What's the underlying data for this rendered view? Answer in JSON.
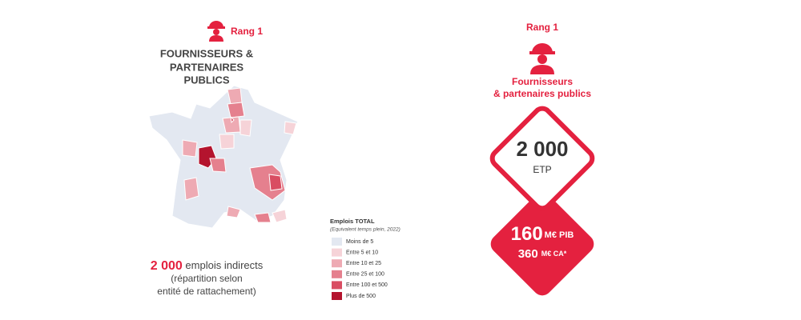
{
  "left": {
    "rank": "Rang 1",
    "title_lines": [
      "FOURNISSEURS &",
      "PARTENAIRES",
      "PUBLICS"
    ],
    "caption": {
      "highlight": "2 000",
      "rest": "emplois indirects",
      "lines": [
        "(répartition selon",
        "entité de rattachement)"
      ]
    }
  },
  "legend": {
    "title": "Emplois TOTAL",
    "subtitle": "(Equivalent temps plein, 2022)",
    "items": [
      {
        "label": "Moins de 5",
        "color": "#e3e8f1"
      },
      {
        "label": "Entre 5 et 10",
        "color": "#f6d3d8"
      },
      {
        "label": "Entre 10 et 25",
        "color": "#eeaab3"
      },
      {
        "label": "Entre 25 et 100",
        "color": "#e5808e"
      },
      {
        "label": "Entre 100 et 500",
        "color": "#d94d62"
      },
      {
        "label": "Plus de 500",
        "color": "#b4142e"
      }
    ]
  },
  "right": {
    "rank": "Rang 1",
    "title_lines": [
      "Fournisseurs",
      "& partenaires publics"
    ],
    "diamond_top": {
      "value": "2 000",
      "unit": "ETP"
    },
    "diamond_bottom": {
      "value1": "160",
      "unit1": "M€ PIB",
      "value2": "360",
      "unit2": "M€ CA*"
    }
  }
}
